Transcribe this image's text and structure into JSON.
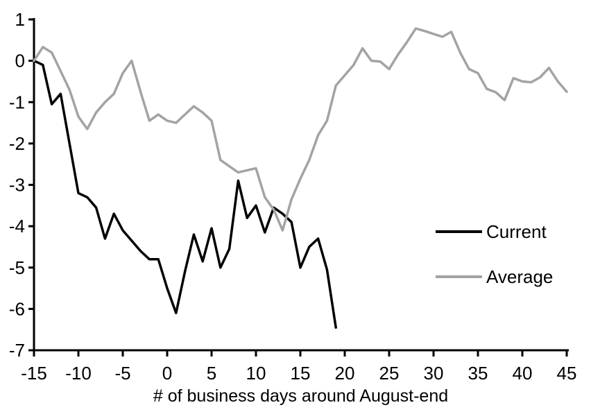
{
  "chart_data": {
    "type": "line",
    "title": "",
    "xlabel": "# of business days around August-end",
    "ylabel": "",
    "xlim": [
      -15,
      45
    ],
    "ylim": [
      -7,
      1
    ],
    "xticks": [
      -15,
      -10,
      -5,
      0,
      5,
      10,
      15,
      20,
      25,
      30,
      35,
      40,
      45
    ],
    "yticks": [
      1,
      0,
      -1,
      -2,
      -3,
      -4,
      -5,
      -6,
      -7
    ],
    "grid": false,
    "legend_position": "right-middle",
    "axis_color": "#000000",
    "x": [
      -15,
      -14,
      -13,
      -12,
      -11,
      -10,
      -9,
      -8,
      -7,
      -6,
      -5,
      -4,
      -3,
      -2,
      -1,
      0,
      1,
      2,
      3,
      4,
      5,
      6,
      7,
      8,
      9,
      10,
      11,
      12,
      13,
      14,
      15,
      16,
      17,
      18,
      19,
      20,
      21,
      22,
      23,
      24,
      25,
      26,
      27,
      28,
      29,
      30,
      31,
      32,
      33,
      34,
      35,
      36,
      37,
      38,
      39,
      40,
      41,
      42,
      43,
      44,
      45
    ],
    "series": [
      {
        "name": "Current",
        "color": "#000000",
        "values": [
          0,
          -0.1,
          -1.05,
          -0.8,
          -2.0,
          -3.2,
          -3.3,
          -3.55,
          -4.3,
          -3.7,
          -4.1,
          -4.35,
          -4.6,
          -4.8,
          -4.8,
          -5.5,
          -6.1,
          -5.1,
          -4.2,
          -4.85,
          -4.05,
          -5.0,
          -4.55,
          -2.9,
          -3.8,
          -3.5,
          -4.15,
          -3.55,
          -3.7,
          -3.9,
          -5.0,
          -4.5,
          -4.3,
          -5.05,
          -6.45,
          null,
          null,
          null,
          null,
          null,
          null,
          null,
          null,
          null,
          null,
          null,
          null,
          null,
          null,
          null,
          null,
          null,
          null,
          null,
          null,
          null,
          null,
          null,
          null,
          null,
          null
        ]
      },
      {
        "name": "Average",
        "color": "#a3a3a3",
        "values": [
          0,
          0.33,
          0.2,
          -0.25,
          -0.7,
          -1.35,
          -1.65,
          -1.25,
          -1.0,
          -0.8,
          -0.3,
          0.0,
          -0.75,
          -1.45,
          -1.3,
          -1.45,
          -1.5,
          -1.3,
          -1.1,
          -1.25,
          -1.45,
          -2.4,
          -2.55,
          -2.7,
          -2.65,
          -2.6,
          -3.3,
          -3.6,
          -4.1,
          -3.35,
          -2.85,
          -2.4,
          -1.8,
          -1.45,
          -0.6,
          -0.35,
          -0.1,
          0.3,
          0.0,
          -0.02,
          -0.2,
          0.15,
          0.45,
          0.78,
          0.72,
          0.65,
          0.58,
          0.7,
          0.2,
          -0.2,
          -0.3,
          -0.68,
          -0.76,
          -0.95,
          -0.42,
          -0.5,
          -0.52,
          -0.4,
          -0.17,
          -0.5,
          -0.75
        ]
      }
    ]
  },
  "legend": {
    "items": [
      {
        "label": "Current",
        "color": "#000000"
      },
      {
        "label": "Average",
        "color": "#a3a3a3"
      }
    ]
  }
}
